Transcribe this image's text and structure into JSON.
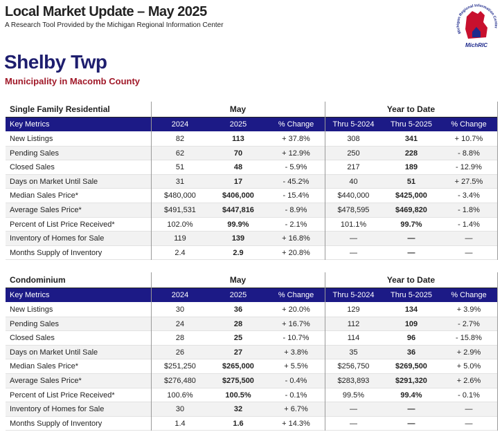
{
  "header": {
    "title": "Local Market Update – May 2025",
    "subtitle": "A Research Tool Provided by the Michigan Regional Information Center",
    "logo_text": "MichRIC",
    "logo_arc": "Michigan Regional Information Center"
  },
  "area": {
    "name": "Shelby Twp",
    "description": "Municipality in Macomb County"
  },
  "tables": [
    {
      "section": "Single Family Residential",
      "groups": [
        "May",
        "Year to Date"
      ],
      "columns": [
        "Key Metrics",
        "2024",
        "2025",
        "% Change",
        "Thru 5-2024",
        "Thru 5-2025",
        "% Change"
      ],
      "rows": [
        [
          "New Listings",
          "82",
          "113",
          "+ 37.8%",
          "308",
          "341",
          "+ 10.7%"
        ],
        [
          "Pending Sales",
          "62",
          "70",
          "+ 12.9%",
          "250",
          "228",
          "- 8.8%"
        ],
        [
          "Closed Sales",
          "51",
          "48",
          "- 5.9%",
          "217",
          "189",
          "- 12.9%"
        ],
        [
          "Days on Market Until Sale",
          "31",
          "17",
          "- 45.2%",
          "40",
          "51",
          "+ 27.5%"
        ],
        [
          "Median Sales Price*",
          "$480,000",
          "$406,000",
          "- 15.4%",
          "$440,000",
          "$425,000",
          "- 3.4%"
        ],
        [
          "Average Sales Price*",
          "$491,531",
          "$447,816",
          "- 8.9%",
          "$478,595",
          "$469,820",
          "- 1.8%"
        ],
        [
          "Percent of List Price Received*",
          "102.0%",
          "99.9%",
          "- 2.1%",
          "101.1%",
          "99.7%",
          "- 1.4%"
        ],
        [
          "Inventory of Homes for Sale",
          "119",
          "139",
          "+ 16.8%",
          "—",
          "—",
          "—"
        ],
        [
          "Months Supply of Inventory",
          "2.4",
          "2.9",
          "+ 20.8%",
          "—",
          "—",
          "—"
        ]
      ]
    },
    {
      "section": "Condominium",
      "groups": [
        "May",
        "Year to Date"
      ],
      "columns": [
        "Key Metrics",
        "2024",
        "2025",
        "% Change",
        "Thru 5-2024",
        "Thru 5-2025",
        "% Change"
      ],
      "rows": [
        [
          "New Listings",
          "30",
          "36",
          "+ 20.0%",
          "129",
          "134",
          "+ 3.9%"
        ],
        [
          "Pending Sales",
          "24",
          "28",
          "+ 16.7%",
          "112",
          "109",
          "- 2.7%"
        ],
        [
          "Closed Sales",
          "28",
          "25",
          "- 10.7%",
          "114",
          "96",
          "- 15.8%"
        ],
        [
          "Days on Market Until Sale",
          "26",
          "27",
          "+ 3.8%",
          "35",
          "36",
          "+ 2.9%"
        ],
        [
          "Median Sales Price*",
          "$251,250",
          "$265,000",
          "+ 5.5%",
          "$256,750",
          "$269,500",
          "+ 5.0%"
        ],
        [
          "Average Sales Price*",
          "$276,480",
          "$275,500",
          "- 0.4%",
          "$283,893",
          "$291,320",
          "+ 2.6%"
        ],
        [
          "Percent of List Price Received*",
          "100.6%",
          "100.5%",
          "- 0.1%",
          "99.5%",
          "99.4%",
          "- 0.1%"
        ],
        [
          "Inventory of Homes for Sale",
          "30",
          "32",
          "+ 6.7%",
          "—",
          "—",
          "—"
        ],
        [
          "Months Supply of Inventory",
          "1.4",
          "1.6",
          "+ 14.3%",
          "—",
          "—",
          "—"
        ]
      ]
    }
  ]
}
